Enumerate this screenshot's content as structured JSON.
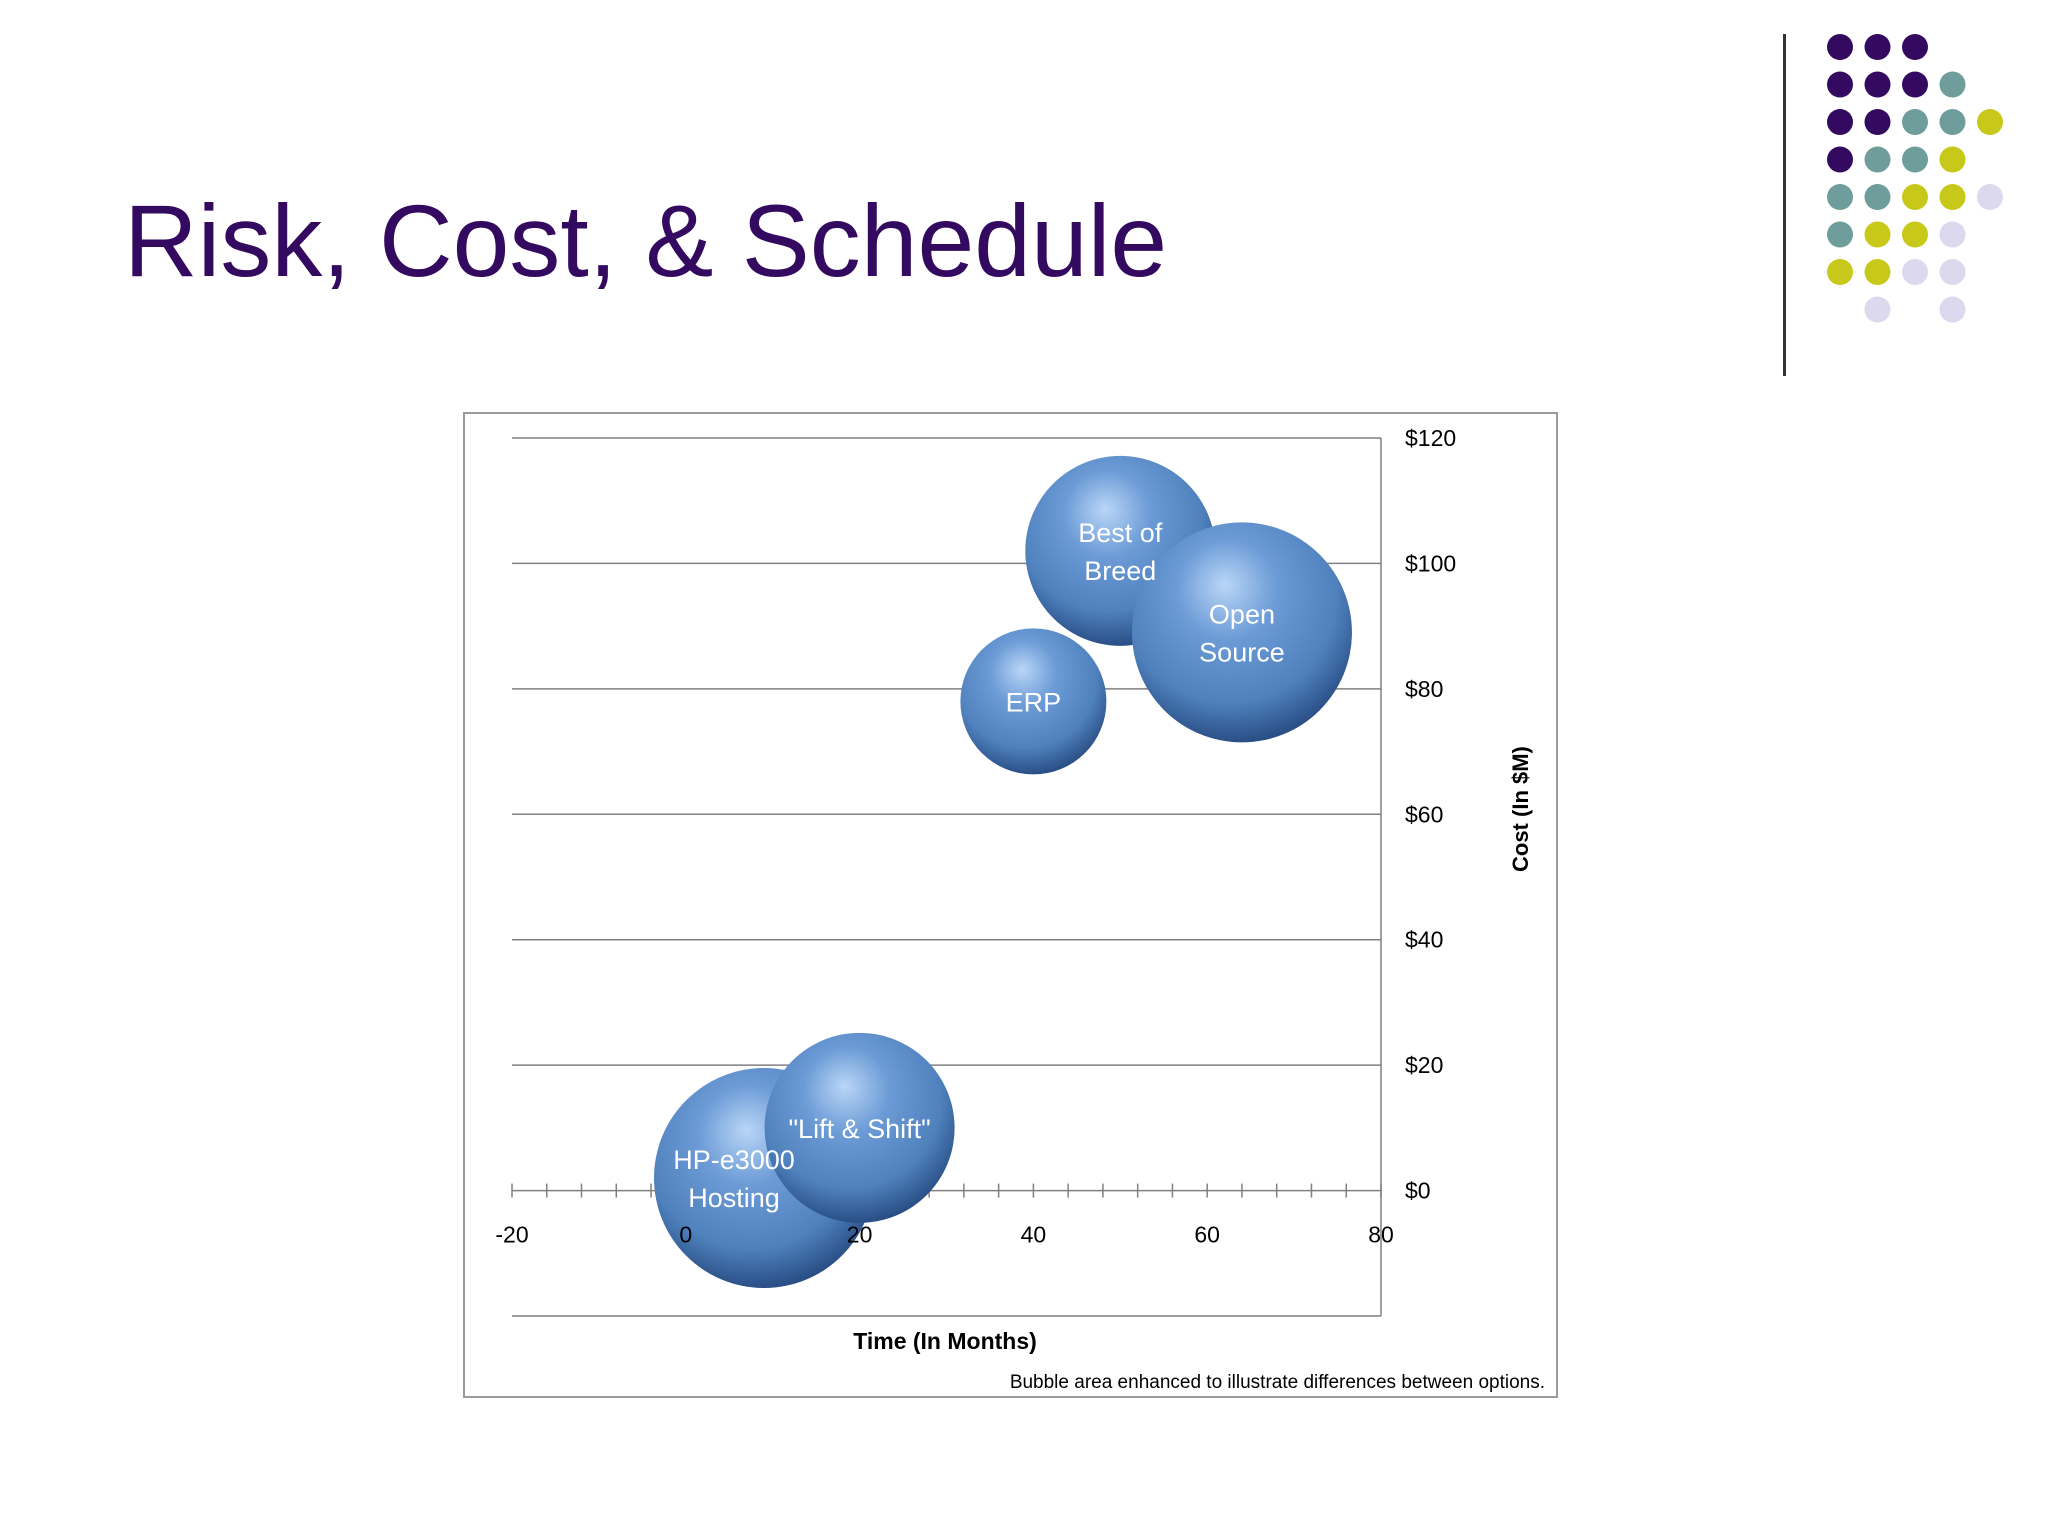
{
  "slide": {
    "title": "Risk, Cost, & Schedule"
  },
  "decoration": {
    "dot_colors": {
      "purple": "#340a60",
      "teal": "#6e9d9b",
      "olive": "#c8c81a",
      "lavender": "#dcd8ee"
    },
    "rule_color": "#333333"
  },
  "chart_data": {
    "type": "bubble",
    "xlabel": "Time (In Months)",
    "ylabel": "Cost (In $M)",
    "xlim": [
      -20,
      80
    ],
    "ylim": [
      -20,
      120
    ],
    "x_ticks": [
      -20,
      0,
      20,
      40,
      60,
      80
    ],
    "y_ticks": [
      0,
      20,
      40,
      60,
      80,
      100,
      120
    ],
    "y_tick_labels": [
      "$0",
      "$20",
      "$40",
      "$60",
      "$80",
      "$100",
      "$120"
    ],
    "y_axis_side": "right",
    "grid": "horizontal",
    "bubble_color": "#4f81bd",
    "footnote": "Bubble area enhanced to illustrate differences between options.",
    "bubbles": [
      {
        "label": "HP-e3000 Hosting",
        "label_lines": [
          "HP-e3000",
          "Hosting"
        ],
        "x": 9,
        "y": 2,
        "size": 2.6
      },
      {
        "label": "\"Lift & Shift\"",
        "label_lines": [
          "\"Lift & Shift\""
        ],
        "x": 20,
        "y": 10,
        "size": 2.0
      },
      {
        "label": "ERP",
        "label_lines": [
          "ERP"
        ],
        "x": 40,
        "y": 78,
        "size": 1.2
      },
      {
        "label": "Best of Breed",
        "label_lines": [
          "Best of",
          "Breed"
        ],
        "x": 50,
        "y": 102,
        "size": 2.0
      },
      {
        "label": "Open Source",
        "label_lines": [
          "Open",
          "Source"
        ],
        "x": 64,
        "y": 89,
        "size": 2.7
      }
    ]
  }
}
